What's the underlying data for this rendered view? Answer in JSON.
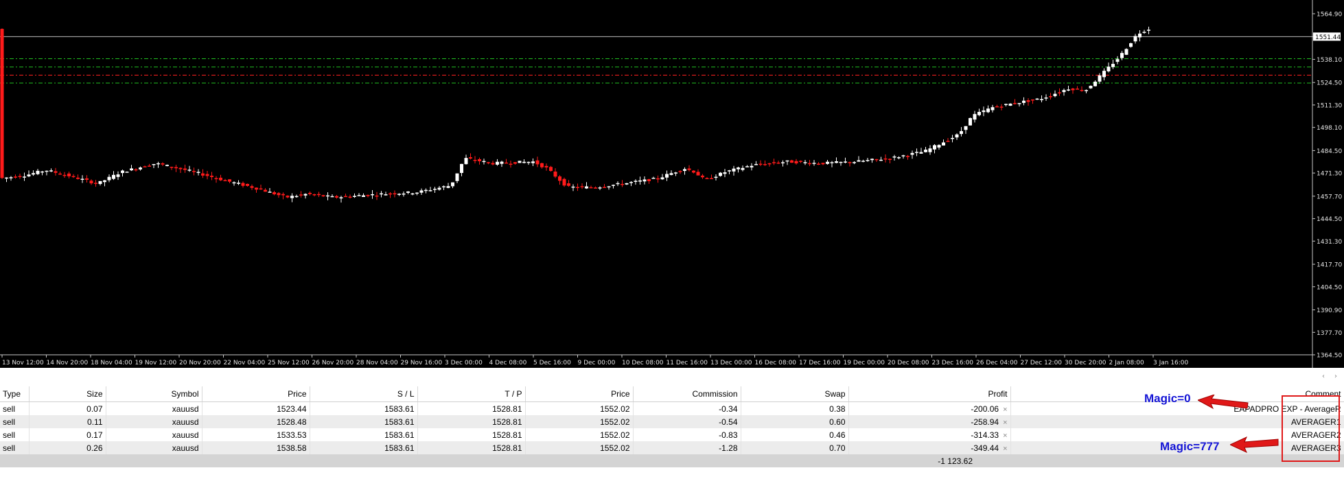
{
  "chart": {
    "background": "#000000",
    "bull_color": "#ffffff",
    "bear_color": "#ff1a1a",
    "current_price": "1551.44",
    "price_axis": [
      "1564.90",
      "1551.44",
      "1538.10",
      "1524.50",
      "1511.30",
      "1498.10",
      "1484.50",
      "1471.30",
      "1457.70",
      "1444.50",
      "1431.30",
      "1417.70",
      "1404.50",
      "1390.90",
      "1377.70",
      "1364.50"
    ],
    "time_axis": [
      "13 Nov 12:00",
      "14 Nov 20:00",
      "18 Nov 04:00",
      "19 Nov 12:00",
      "20 Nov 20:00",
      "22 Nov 04:00",
      "25 Nov 12:00",
      "26 Nov 20:00",
      "28 Nov 04:00",
      "29 Nov 16:00",
      "3 Dec 00:00",
      "4 Dec 08:00",
      "5 Dec 16:00",
      "9 Dec 00:00",
      "10 Dec 08:00",
      "11 Dec 16:00",
      "13 Dec 00:00",
      "16 Dec 08:00",
      "17 Dec 16:00",
      "19 Dec 00:00",
      "20 Dec 08:00",
      "23 Dec 16:00",
      "26 Dec 04:00",
      "27 Dec 12:00",
      "30 Dec 20:00",
      "2 Jan 08:00",
      "3 Jan 16:00"
    ],
    "tp_lines": [
      1538.5,
      1533.6,
      1524.2
    ],
    "sl_line": 1528.8,
    "sl_color": "#ff2020",
    "tp_color": "#22c022"
  },
  "table": {
    "headers": {
      "type": "Type",
      "size": "Size",
      "symbol": "Symbol",
      "price": "Price",
      "sl": "S / L",
      "tp": "T / P",
      "cur_price": "Price",
      "commission": "Commission",
      "swap": "Swap",
      "profit": "Profit",
      "comment": "Comment"
    },
    "rows": [
      {
        "type": "sell",
        "size": "0.07",
        "symbol": "xauusd",
        "price": "1523.44",
        "sl": "1583.61",
        "tp": "1528.81",
        "cur_price": "1552.02",
        "commission": "-0.34",
        "swap": "0.38",
        "profit": "-200.06",
        "close": "×",
        "comment": "EAPADPRO EXP - AverageR"
      },
      {
        "type": "sell",
        "size": "0.11",
        "symbol": "xauusd",
        "price": "1528.48",
        "sl": "1583.61",
        "tp": "1528.81",
        "cur_price": "1552.02",
        "commission": "-0.54",
        "swap": "0.60",
        "profit": "-258.94",
        "close": "×",
        "comment": "AVERAGER1"
      },
      {
        "type": "sell",
        "size": "0.17",
        "symbol": "xauusd",
        "price": "1533.53",
        "sl": "1583.61",
        "tp": "1528.81",
        "cur_price": "1552.02",
        "commission": "-0.83",
        "swap": "0.46",
        "profit": "-314.33",
        "close": "×",
        "comment": "AVERAGER2"
      },
      {
        "type": "sell",
        "size": "0.26",
        "symbol": "xauusd",
        "price": "1538.58",
        "sl": "1583.61",
        "tp": "1528.81",
        "cur_price": "1552.02",
        "commission": "-1.28",
        "swap": "0.70",
        "profit": "-349.44",
        "close": "×",
        "comment": "AVERAGER3"
      }
    ],
    "total_profit": "-1 123.62"
  },
  "nav": {
    "left_arrow": "‹",
    "right_arrow": "›"
  },
  "annotations": {
    "magic0": "Magic=0",
    "magic777": "Magic=777",
    "label_color": "#1515d6",
    "highlight_color": "#e01818"
  }
}
